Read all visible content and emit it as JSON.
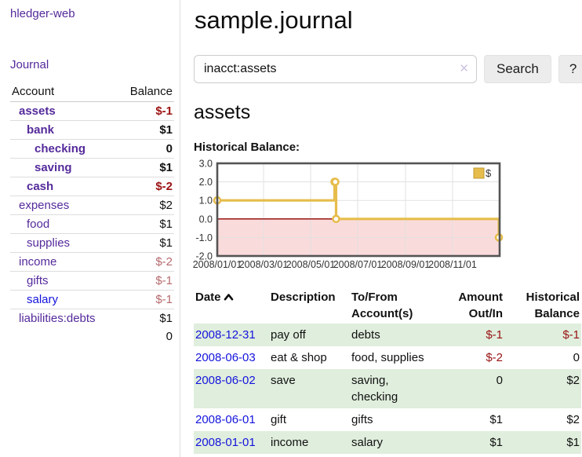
{
  "app": {
    "brand": "hledger-web",
    "nav": {
      "journal": "Journal"
    }
  },
  "sidebar": {
    "header": {
      "account": "Account",
      "balance": "Balance"
    },
    "accounts": [
      {
        "name": "assets",
        "indent": 1,
        "balance": "$-1",
        "bold": true,
        "balance_tone": "neg-strong"
      },
      {
        "name": "bank",
        "indent": 2,
        "balance": "$1",
        "bold": true,
        "balance_tone": "normal"
      },
      {
        "name": "checking",
        "indent": 3,
        "balance": "0",
        "bold": true,
        "balance_tone": "normal"
      },
      {
        "name": "saving",
        "indent": 3,
        "balance": "$1",
        "bold": true,
        "balance_tone": "normal"
      },
      {
        "name": "cash",
        "indent": 2,
        "balance": "$-2",
        "bold": true,
        "balance_tone": "neg-strong"
      },
      {
        "name": "expenses",
        "indent": 1,
        "balance": "$2",
        "bold": false,
        "balance_tone": "normal"
      },
      {
        "name": "food",
        "indent": 2,
        "balance": "$1",
        "bold": false,
        "balance_tone": "normal"
      },
      {
        "name": "supplies",
        "indent": 2,
        "balance": "$1",
        "bold": false,
        "balance_tone": "normal"
      },
      {
        "name": "income",
        "indent": 1,
        "balance": "$-2",
        "bold": false,
        "balance_tone": "neg-soft"
      },
      {
        "name": "gifts",
        "indent": 2,
        "balance": "$-1",
        "bold": false,
        "balance_tone": "neg-soft"
      },
      {
        "name": "salary",
        "indent": 2,
        "balance": "$-1",
        "bold": false,
        "balance_tone": "neg-soft",
        "link_blue": true
      },
      {
        "name": "liabilities:debts",
        "indent": 1,
        "balance": "$1",
        "bold": false,
        "balance_tone": "normal"
      }
    ],
    "total": "0"
  },
  "header": {
    "title": "sample.journal"
  },
  "search": {
    "value": "inacct:assets",
    "clear_icon": "✕",
    "search_button": "Search",
    "help_button": "?"
  },
  "account_page": {
    "heading": "assets",
    "chart_title": "Historical Balance:"
  },
  "chart_data": {
    "type": "line",
    "step": true,
    "title": "Historical Balance",
    "xlim": [
      "2008-01-01",
      "2009-01-01"
    ],
    "ylim": [
      -2,
      3
    ],
    "x_ticks": [
      "2008/01/01",
      "2008/03/01",
      "2008/05/01",
      "2008/07/01",
      "2008/09/01",
      "2008/11/01"
    ],
    "y_ticks": [
      "3.0",
      "2.0",
      "1.0",
      "0.0",
      "-1.0",
      "-2.0"
    ],
    "legend": {
      "label": "$",
      "position": "top-right"
    },
    "grid": true,
    "series": [
      {
        "name": "$",
        "color": "#e6bd4c",
        "marker": "open-circle",
        "points": [
          [
            "2008-01-01",
            1
          ],
          [
            "2008-06-01",
            2
          ],
          [
            "2008-06-02",
            2
          ],
          [
            "2008-06-03",
            0
          ],
          [
            "2008-12-31",
            -1
          ]
        ]
      }
    ],
    "negative_region_color": "#fadbdb",
    "zero_line_color": "#8e0000",
    "frame_color": "#545454"
  },
  "register": {
    "columns": {
      "date": "Date",
      "description": "Description",
      "accounts": "To/From Account(s)",
      "amount": "Amount Out/In",
      "balance": "Historical Balance"
    },
    "sort_icon": "chevron-up",
    "rows": [
      {
        "date": "2008-12-31",
        "description": "pay off",
        "accounts": "debts",
        "amount": "$-1",
        "balance": "$-1",
        "amount_neg": true,
        "balance_neg": true,
        "shaded": true
      },
      {
        "date": "2008-06-03",
        "description": "eat & shop",
        "accounts": "food, supplies",
        "amount": "$-2",
        "balance": "0",
        "amount_neg": true,
        "balance_neg": false,
        "shaded": false
      },
      {
        "date": "2008-06-02",
        "description": "save",
        "accounts": "saving, checking",
        "amount": "0",
        "balance": "$2",
        "amount_neg": false,
        "balance_neg": false,
        "shaded": true
      },
      {
        "date": "2008-06-01",
        "description": "gift",
        "accounts": "gifts",
        "amount": "$1",
        "balance": "$2",
        "amount_neg": false,
        "balance_neg": false,
        "shaded": false
      },
      {
        "date": "2008-01-01",
        "description": "income",
        "accounts": "salary",
        "amount": "$1",
        "balance": "$1",
        "amount_neg": false,
        "balance_neg": false,
        "shaded": true
      }
    ]
  }
}
